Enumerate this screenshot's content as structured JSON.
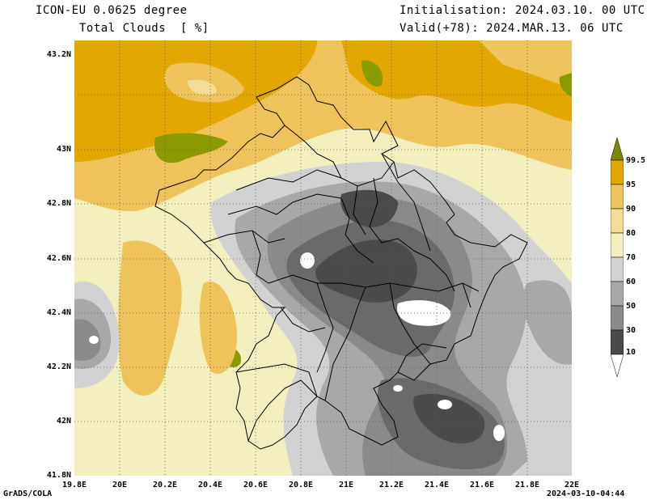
{
  "header": {
    "title": "ICON-EU 0.0625 degree",
    "variable": "Total Clouds  [ %]",
    "initialisation": "Initialisation: 2024.03.10. 00 UTC",
    "valid": "Valid(+78): 2024.MAR.13. 06 UTC"
  },
  "lat_ticks": [
    "43.2N",
    "43N",
    "42.8N",
    "42.6N",
    "42.4N",
    "42.2N",
    "42N",
    "41.8N"
  ],
  "lon_ticks": [
    "19.8E",
    "20E",
    "20.2E",
    "20.4E",
    "20.6E",
    "20.8E",
    "21E",
    "21.2E",
    "21.4E",
    "21.6E",
    "21.8E",
    "22E"
  ],
  "colorbar": {
    "labels": [
      "99.5",
      "95",
      "90",
      "80",
      "70",
      "60",
      "50",
      "30",
      "10"
    ],
    "colors": [
      "#7a8b00",
      "#e2a700",
      "#efc35c",
      "#f3dc95",
      "#f2eebd",
      "#d2d2d2",
      "#a8a8a8",
      "#8a8a8a",
      "#6a6a6a",
      "#4b4b4b",
      "#ffffff"
    ]
  },
  "footer": {
    "credit": "GrADS/COLA",
    "timestamp": "2024-03-10-04:44"
  }
}
